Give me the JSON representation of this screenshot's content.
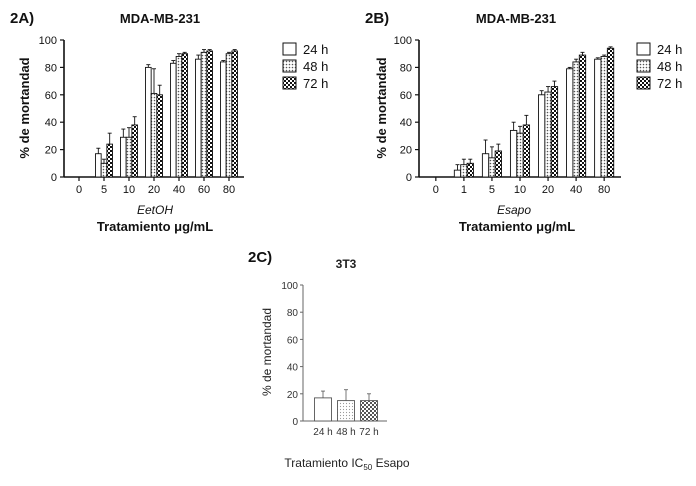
{
  "chart_data": [
    {
      "type": "bar",
      "panel_label": "2A)",
      "title": "MDA-MB-231",
      "ylabel": "% de mortandad",
      "xsublabel": "EetOH",
      "xlabel": "Tratamiento μg/mL",
      "categories": [
        "0",
        "5",
        "10",
        "20",
        "40",
        "60",
        "80"
      ],
      "ylim": [
        0,
        100
      ],
      "yticks": [
        0,
        20,
        40,
        60,
        80,
        100
      ],
      "legend_position": "top-right",
      "series": [
        {
          "name": "24 h",
          "values": [
            0,
            17,
            29,
            80,
            83,
            86,
            84
          ],
          "errors": [
            0,
            4,
            6,
            2,
            2,
            3,
            1
          ]
        },
        {
          "name": "48 h",
          "values": [
            0,
            10,
            29,
            61,
            88,
            91,
            90
          ],
          "errors": [
            0,
            3,
            7,
            18,
            2,
            2,
            1
          ]
        },
        {
          "name": "72 h",
          "values": [
            0,
            24,
            38,
            60,
            90,
            92,
            92
          ],
          "errors": [
            0,
            8,
            6,
            7,
            1,
            1,
            1
          ]
        }
      ]
    },
    {
      "type": "bar",
      "panel_label": "2B)",
      "title": "MDA-MB-231",
      "ylabel": "% de mortandad",
      "xsublabel": "Esapo",
      "xlabel": "Tratamiento μg/mL",
      "categories": [
        "0",
        "1",
        "5",
        "10",
        "20",
        "40",
        "80"
      ],
      "ylim": [
        0,
        100
      ],
      "yticks": [
        0,
        20,
        40,
        60,
        80,
        100
      ],
      "legend_position": "top-right",
      "series": [
        {
          "name": "24 h",
          "values": [
            0,
            5,
            17,
            34,
            60,
            79,
            86
          ],
          "errors": [
            0,
            4,
            10,
            6,
            3,
            1,
            1
          ]
        },
        {
          "name": "48 h",
          "values": [
            0,
            9,
            14,
            32,
            62,
            84,
            88
          ],
          "errors": [
            0,
            4,
            8,
            5,
            4,
            2,
            1
          ]
        },
        {
          "name": "72 h",
          "values": [
            0,
            10,
            19,
            38,
            66,
            89,
            94
          ],
          "errors": [
            0,
            3,
            5,
            7,
            4,
            2,
            1
          ]
        }
      ]
    },
    {
      "type": "bar",
      "panel_label": "2C)",
      "title": "3T3",
      "ylabel": "% de mortandad",
      "xlabel_prefix": "Tratamiento IC",
      "xlabel_sub": "50",
      "xlabel_suffix": " Esapo",
      "categories": [
        "24 h",
        "48 h",
        "72 h"
      ],
      "ylim": [
        0,
        100
      ],
      "yticks": [
        0,
        20,
        40,
        60,
        80,
        100
      ],
      "values": [
        17,
        15,
        15
      ],
      "errors": [
        5,
        8,
        5
      ]
    }
  ]
}
